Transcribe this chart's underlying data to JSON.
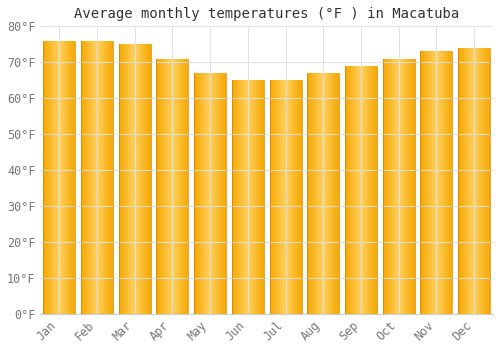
{
  "title": "Average monthly temperatures (°F ) in Macatuba",
  "months": [
    "Jan",
    "Feb",
    "Mar",
    "Apr",
    "May",
    "Jun",
    "Jul",
    "Aug",
    "Sep",
    "Oct",
    "Nov",
    "Dec"
  ],
  "values": [
    76,
    76,
    75,
    71,
    67,
    65,
    65,
    67,
    69,
    71,
    73,
    74
  ],
  "bar_color_left": "#F5A800",
  "bar_color_center": "#FFD060",
  "bar_color_right": "#F5A800",
  "background_color": "#FFFFFF",
  "grid_color": "#e0e0e0",
  "ylim": [
    0,
    80
  ],
  "yticks": [
    0,
    10,
    20,
    30,
    40,
    50,
    60,
    70,
    80
  ],
  "title_fontsize": 10,
  "tick_fontsize": 8.5,
  "bar_width": 0.85
}
